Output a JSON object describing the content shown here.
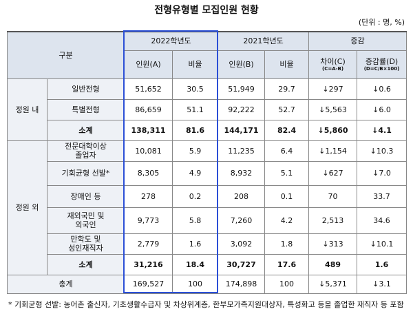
{
  "header": {
    "title": "전형유형별 모집인원 현황",
    "unit": "(단위 : 명, %)"
  },
  "table": {
    "head": {
      "group": "구분",
      "year_a": "2022학년도",
      "year_b": "2021학년도",
      "change": "증감",
      "cols": [
        "인원(A)",
        "비율",
        "인원(B)",
        "비율",
        "차이(C)",
        "증감률(D)"
      ],
      "formulas": [
        "(C=A-B)",
        "(D=C/B×100)"
      ]
    },
    "groups": [
      {
        "label": "정원 내",
        "rows": [
          {
            "label": [
              "일반전형"
            ],
            "cells": [
              "51,652",
              "30.5",
              "51,949",
              "29.7",
              "↓297",
              "↓0.6"
            ]
          },
          {
            "label": [
              "특별전형"
            ],
            "cells": [
              "86,659",
              "51.1",
              "92,222",
              "52.7",
              "↓5,563",
              "↓6.0"
            ]
          },
          {
            "label": [
              "소계"
            ],
            "bold": true,
            "cells": [
              "138,311",
              "81.6",
              "144,171",
              "82.4",
              "↓5,860",
              "↓4.1"
            ]
          }
        ]
      },
      {
        "label": "정원 외",
        "rows": [
          {
            "label": [
              "전문대학이상",
              "졸업자"
            ],
            "cells": [
              "10,081",
              "5.9",
              "11,235",
              "6.4",
              "↓1,154",
              "↓10.3"
            ]
          },
          {
            "label": [
              "기회균형 선발*"
            ],
            "cells": [
              "8,305",
              "4.9",
              "8,932",
              "5.1",
              "↓627",
              "↓7.0"
            ]
          },
          {
            "label": [
              "장애인 등"
            ],
            "cells": [
              "278",
              "0.2",
              "208",
              "0.1",
              "70",
              "33.7"
            ]
          },
          {
            "label": [
              "재외국민 및",
              "외국인"
            ],
            "cells": [
              "9,773",
              "5.8",
              "7,260",
              "4.2",
              "2,513",
              "34.6"
            ]
          },
          {
            "label": [
              "만학도 및",
              "성인재직자"
            ],
            "cells": [
              "2,779",
              "1.6",
              "3,092",
              "1.8",
              "↓313",
              "↓10.1"
            ]
          },
          {
            "label": [
              "소계"
            ],
            "bold": true,
            "cells": [
              "31,216",
              "18.4",
              "30,727",
              "17.6",
              "489",
              "1.6"
            ]
          }
        ]
      }
    ],
    "total": {
      "label": "총계",
      "cells": [
        "169,527",
        "100",
        "174,898",
        "100",
        "↓5,371",
        "↓3.1"
      ]
    }
  },
  "footnote": "* 기회균형 선발: 농어촌 출신자, 기초생활수급자 및 차상위계층, 한부모가족지원대상자, 특성화고 등을 졸업한 재직자 등 포함"
}
